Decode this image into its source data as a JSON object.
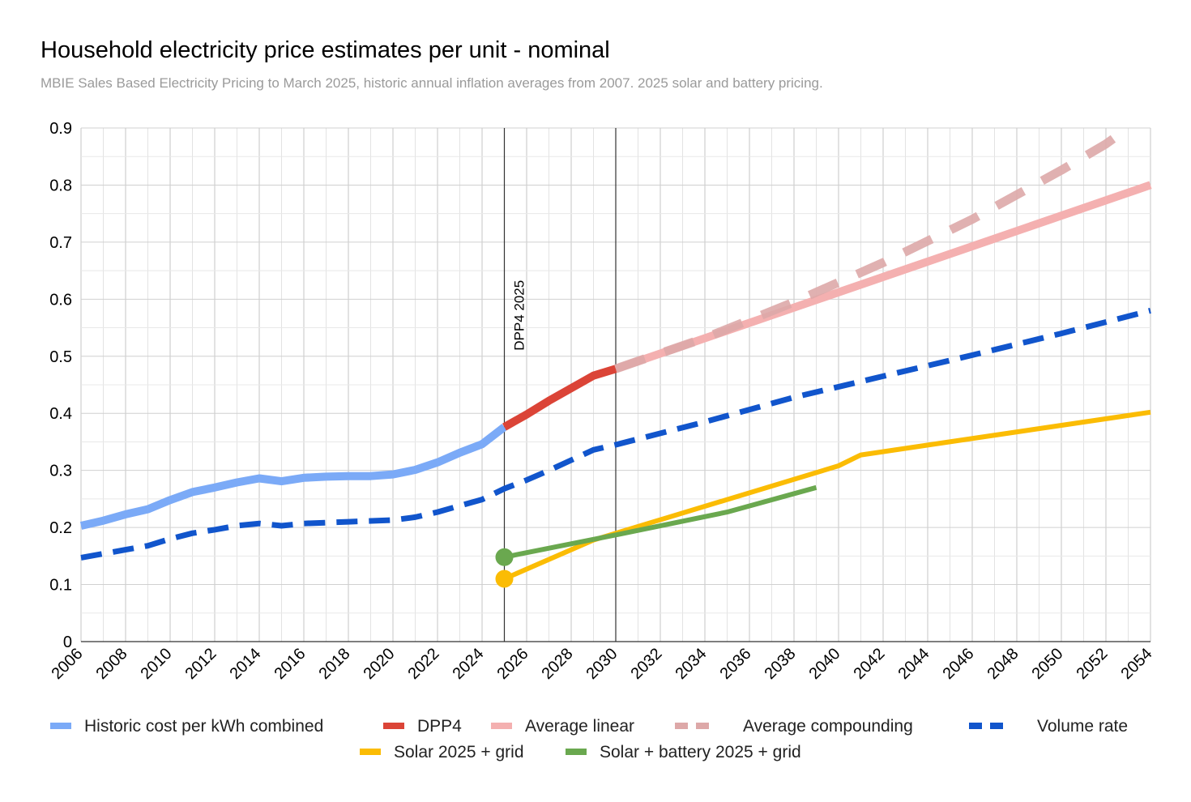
{
  "title": "Household electricity price estimates per unit - nominal",
  "subtitle": "MBIE Sales Based Electricity Pricing to March 2025, historic annual inflation averages from 2007. 2025 solar and battery pricing.",
  "chart_data": {
    "type": "line",
    "title": "Household electricity price estimates per unit - nominal",
    "subtitle": "MBIE Sales Based Electricity Pricing to March 2025, historic annual inflation averages from 2007. 2025 solar and battery pricing.",
    "xlabel": "",
    "ylabel": "",
    "xlim": [
      2006,
      2054
    ],
    "ylim": [
      0,
      0.9
    ],
    "x_ticks": [
      "2006",
      "2008",
      "2010",
      "2012",
      "2014",
      "2016",
      "2018",
      "2020",
      "2022",
      "2024",
      "2026",
      "2028",
      "2030",
      "2032",
      "2034",
      "2036",
      "2038",
      "2040",
      "2042",
      "2044",
      "2046",
      "2048",
      "2050",
      "2052",
      "2054"
    ],
    "y_ticks": [
      "0",
      "0.1",
      "0.2",
      "0.3",
      "0.4",
      "0.5",
      "0.6",
      "0.7",
      "0.8",
      "0.9"
    ],
    "grid": true,
    "legend_position": "bottom",
    "vertical_markers": [
      {
        "x": 2025,
        "label": "DPP4 2025"
      },
      {
        "x": 2030,
        "label": ""
      }
    ],
    "series": [
      {
        "name": "Historic cost per kWh combined",
        "color": "#7baaf7",
        "style": "solid",
        "points": [
          [
            2006,
            0.203
          ],
          [
            2007,
            0.212
          ],
          [
            2008,
            0.223
          ],
          [
            2009,
            0.232
          ],
          [
            2010,
            0.248
          ],
          [
            2011,
            0.262
          ],
          [
            2012,
            0.27
          ],
          [
            2013,
            0.279
          ],
          [
            2014,
            0.286
          ],
          [
            2015,
            0.281
          ],
          [
            2016,
            0.287
          ],
          [
            2017,
            0.289
          ],
          [
            2018,
            0.29
          ],
          [
            2019,
            0.29
          ],
          [
            2020,
            0.293
          ],
          [
            2021,
            0.301
          ],
          [
            2022,
            0.314
          ],
          [
            2023,
            0.331
          ],
          [
            2024,
            0.346
          ],
          [
            2025,
            0.376
          ]
        ]
      },
      {
        "name": "DPP4",
        "color": "#db4437",
        "style": "solid",
        "points": [
          [
            2025,
            0.376
          ],
          [
            2026,
            0.398
          ],
          [
            2027,
            0.422
          ],
          [
            2028,
            0.444
          ],
          [
            2029,
            0.466
          ],
          [
            2030,
            0.478
          ]
        ]
      },
      {
        "name": "Average linear",
        "color": "#f4b0b0",
        "style": "solid",
        "points": [
          [
            2030,
            0.478
          ],
          [
            2054,
            0.8
          ]
        ]
      },
      {
        "name": "Average compounding",
        "color": "#dda8a8",
        "style": "dashed",
        "points": [
          [
            2030,
            0.478
          ],
          [
            2034,
            0.532
          ],
          [
            2038,
            0.595
          ],
          [
            2042,
            0.664
          ],
          [
            2046,
            0.74
          ],
          [
            2050,
            0.826
          ],
          [
            2052,
            0.872
          ],
          [
            2053,
            0.9
          ]
        ]
      },
      {
        "name": "Volume rate",
        "color": "#1155cc",
        "style": "dashed",
        "points": [
          [
            2006,
            0.147
          ],
          [
            2008,
            0.161
          ],
          [
            2009,
            0.168
          ],
          [
            2010,
            0.18
          ],
          [
            2011,
            0.19
          ],
          [
            2012,
            0.196
          ],
          [
            2013,
            0.203
          ],
          [
            2014,
            0.207
          ],
          [
            2015,
            0.203
          ],
          [
            2016,
            0.207
          ],
          [
            2018,
            0.21
          ],
          [
            2020,
            0.213
          ],
          [
            2021,
            0.218
          ],
          [
            2022,
            0.227
          ],
          [
            2023,
            0.238
          ],
          [
            2024,
            0.249
          ],
          [
            2025,
            0.268
          ],
          [
            2026,
            0.283
          ],
          [
            2027,
            0.3
          ],
          [
            2028,
            0.318
          ],
          [
            2029,
            0.336
          ],
          [
            2030,
            0.345
          ],
          [
            2034,
            0.385
          ],
          [
            2038,
            0.428
          ],
          [
            2042,
            0.465
          ],
          [
            2046,
            0.502
          ],
          [
            2050,
            0.54
          ],
          [
            2054,
            0.58
          ]
        ]
      },
      {
        "name": "Solar 2025 + grid",
        "color": "#fbbc04",
        "style": "solid",
        "points": [
          [
            2025,
            0.11
          ],
          [
            2029,
            0.178
          ],
          [
            2040,
            0.308
          ],
          [
            2041,
            0.327
          ],
          [
            2054,
            0.402
          ]
        ]
      },
      {
        "name": "Solar + battery 2025 + grid",
        "color": "#6aa84f",
        "style": "solid",
        "points": [
          [
            2025,
            0.148
          ],
          [
            2030,
            0.187
          ],
          [
            2035,
            0.227
          ],
          [
            2039,
            0.27
          ]
        ]
      }
    ],
    "markers": [
      {
        "series": "Solar 2025 + grid",
        "x": 2025,
        "y": 0.11
      },
      {
        "series": "Solar + battery 2025 + grid",
        "x": 2025,
        "y": 0.148
      }
    ]
  }
}
